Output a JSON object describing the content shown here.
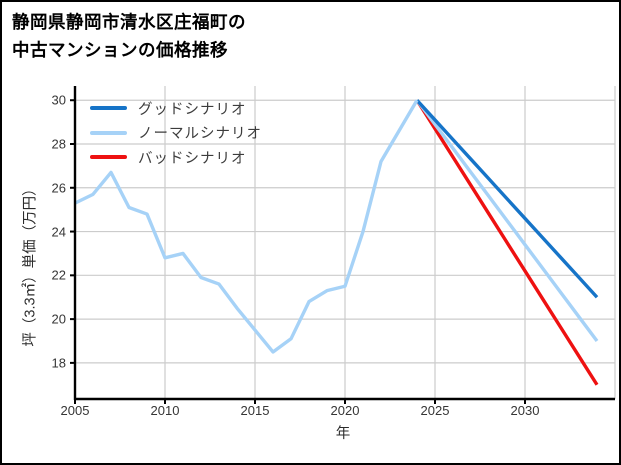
{
  "page": {
    "title_line1": "静岡県静岡市清水区庄福町の",
    "title_line2": "中古マンションの価格推移"
  },
  "colors": {
    "grid": "#cccccc",
    "spine": "#000000",
    "tick_text": "#363636",
    "good_scenario": "#1674c8",
    "normal_scenario": "#a6d2f7",
    "bad_scenario": "#ee1111"
  },
  "chart_data": {
    "type": "line",
    "title": "静岡県静岡市清水区庄福町の中古マンションの価格推移",
    "xlabel": "年",
    "ylabel": "坪（3.3㎡）単価（万円）",
    "xlim": [
      2005,
      2035
    ],
    "ylim": [
      16.35,
      30.65
    ],
    "x_ticks": [
      2005,
      2010,
      2015,
      2020,
      2025,
      2030
    ],
    "y_ticks": [
      18,
      20,
      22,
      24,
      26,
      28,
      30
    ],
    "grid": true,
    "legend_position": "upper-left",
    "series": [
      {
        "id": "price-history",
        "color": "#a6d2f7",
        "x": [
          2005,
          2006,
          2007,
          2008,
          2009,
          2010,
          2011,
          2012,
          2013,
          2014,
          2015,
          2016,
          2017,
          2018,
          2019,
          2020,
          2021,
          2022,
          2023,
          2024
        ],
        "values": [
          25.3,
          25.7,
          26.7,
          25.1,
          24.8,
          22.8,
          23.0,
          21.9,
          21.6,
          20.5,
          19.5,
          18.5,
          19.1,
          20.8,
          21.3,
          21.5,
          24.0,
          27.2,
          28.6,
          30.0
        ]
      },
      {
        "id": "good-scenario",
        "label": "グッドシナリオ",
        "color": "#1674c8",
        "x": [
          2024,
          2025,
          2026,
          2027,
          2028,
          2029,
          2030,
          2031,
          2032,
          2033,
          2034
        ],
        "values": [
          30.0,
          29.1,
          28.2,
          27.3,
          26.4,
          25.5,
          24.6,
          23.7,
          22.8,
          21.9,
          21.0
        ]
      },
      {
        "id": "normal-scenario",
        "label": "ノーマルシナリオ",
        "color": "#a6d2f7",
        "x": [
          2024,
          2025,
          2026,
          2027,
          2028,
          2029,
          2030,
          2031,
          2032,
          2033,
          2034
        ],
        "values": [
          30.0,
          28.9,
          27.8,
          26.7,
          25.6,
          24.5,
          23.4,
          22.3,
          21.2,
          20.1,
          19.0
        ]
      },
      {
        "id": "bad-scenario",
        "label": "バッドシナリオ",
        "color": "#ee1111",
        "x": [
          2024,
          2025,
          2026,
          2027,
          2028,
          2029,
          2030,
          2031,
          2032,
          2033,
          2034
        ],
        "values": [
          30.0,
          28.7,
          27.4,
          26.1,
          24.8,
          23.5,
          22.2,
          20.9,
          19.6,
          18.3,
          17.0
        ]
      }
    ]
  }
}
